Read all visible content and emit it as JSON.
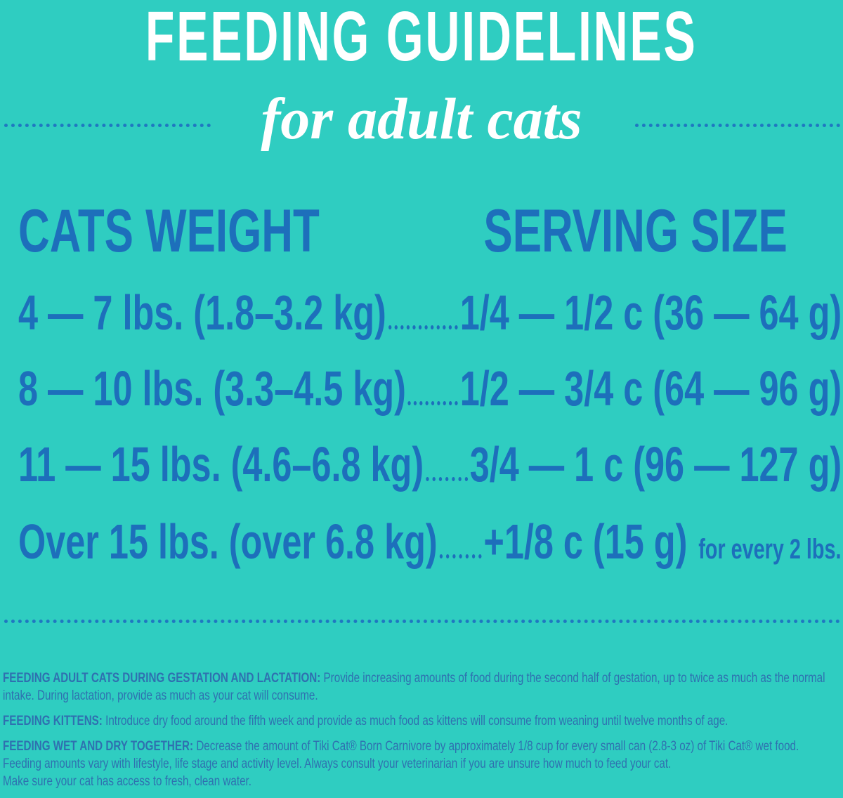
{
  "title": "FEEDING GUIDELINES",
  "subtitle": "for adult cats",
  "table": {
    "headers": [
      "CATS WEIGHT",
      "SERVING SIZE"
    ],
    "rows": [
      [
        "4 — 7 lbs. (1.8–3.2 kg)",
        "1/4 — 1/2 c (36 — 64 g)"
      ],
      [
        "8 — 10 lbs. (3.3–4.5 kg)",
        "1/2 — 3/4 c (64 — 96 g)"
      ],
      [
        "11 — 15 lbs. (4.6–6.8 kg)",
        "3/4 — 1 c (96 — 127 g)"
      ],
      [
        "Over 15 lbs. (over 6.8 kg)",
        "+1/8 c (15 g)",
        "for every 2 lbs."
      ]
    ]
  },
  "notes": [
    {
      "label": "FEEDING ADULT CATS DURING GESTATION AND LACTATION:",
      "text": "Provide increasing amounts of food during the second half of gestation, up to twice as much as the normal intake.  During lactation, provide as much as your cat will consume."
    },
    {
      "label": "FEEDING KITTENS:",
      "text": "Introduce dry food around the fifth week and provide as much food as kittens will consume from weaning until twelve months of age."
    },
    {
      "label": "FEEDING WET AND DRY TOGETHER:",
      "text": "Decrease the amount of Tiki Cat® Born Carnivore by approximately 1/8 cup for every small can (2.8-3 oz) of Tiki Cat® wet food.",
      "lines": [
        "Feeding amounts vary with lifestyle, life stage and activity level.  Always consult your veterinarian if you are unsure how much to feed your cat.",
        "Make sure your cat has access to fresh, clean water."
      ]
    }
  ]
}
